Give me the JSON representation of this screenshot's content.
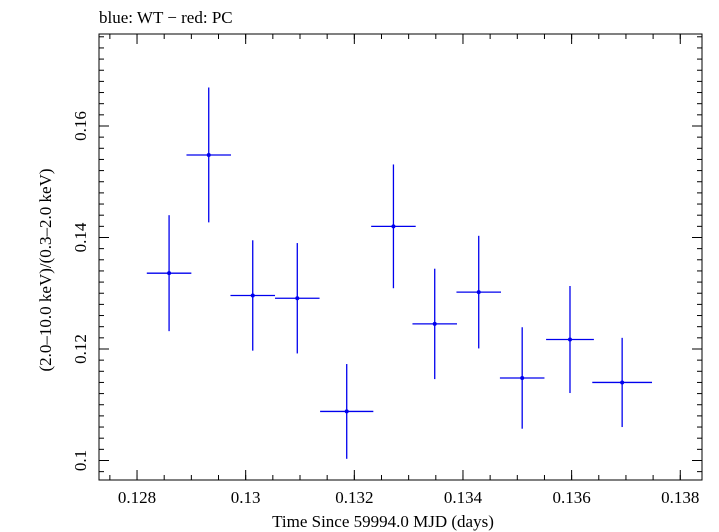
{
  "chart_data": {
    "type": "scatter",
    "title": "blue: WT − red: PC",
    "xlabel": "Time Since 59994.0 MJD (days)",
    "ylabel": "(2.0–10.0 keV)/(0.3–2.0 keV)",
    "xlim": [
      0.1273,
      0.1384
    ],
    "ylim": [
      0.0965,
      0.1765
    ],
    "x_major_ticks": [
      0.128,
      0.13,
      0.132,
      0.134,
      0.136,
      0.138
    ],
    "x_tick_labels": [
      "0.128",
      "0.13",
      "0.132",
      "0.134",
      "0.136",
      "0.138"
    ],
    "x_minor_step": 0.0005,
    "y_major_ticks": [
      0.1,
      0.12,
      0.14,
      0.16
    ],
    "y_tick_labels": [
      "0.1",
      "0.12",
      "0.14",
      "0.16"
    ],
    "y_minor_step": 0.002,
    "grid": false,
    "series": [
      {
        "color": "#0000ee",
        "points": [
          {
            "x": 0.12859,
            "xerr": 0.00041,
            "y": 0.1336,
            "yerr": 0.0104
          },
          {
            "x": 0.12932,
            "xerr": 0.00041,
            "y": 0.1548,
            "yerr": 0.0121
          },
          {
            "x": 0.13013,
            "xerr": 0.00041,
            "y": 0.1296,
            "yerr": 0.0099
          },
          {
            "x": 0.13095,
            "xerr": 0.00041,
            "y": 0.1291,
            "yerr": 0.0099
          },
          {
            "x": 0.13186,
            "xerr": 0.00049,
            "y": 0.1088,
            "yerr": 0.0085
          },
          {
            "x": 0.13272,
            "xerr": 0.00041,
            "y": 0.142,
            "yerr": 0.0111
          },
          {
            "x": 0.13348,
            "xerr": 0.00041,
            "y": 0.1245,
            "yerr": 0.0099
          },
          {
            "x": 0.13429,
            "xerr": 0.00041,
            "y": 0.1302,
            "yerr": 0.0101
          },
          {
            "x": 0.13509,
            "xerr": 0.00041,
            "y": 0.1148,
            "yerr": 0.0091
          },
          {
            "x": 0.13597,
            "xerr": 0.00044,
            "y": 0.1217,
            "yerr": 0.0096
          },
          {
            "x": 0.13693,
            "xerr": 0.00055,
            "y": 0.114,
            "yerr": 0.008
          }
        ]
      }
    ]
  }
}
